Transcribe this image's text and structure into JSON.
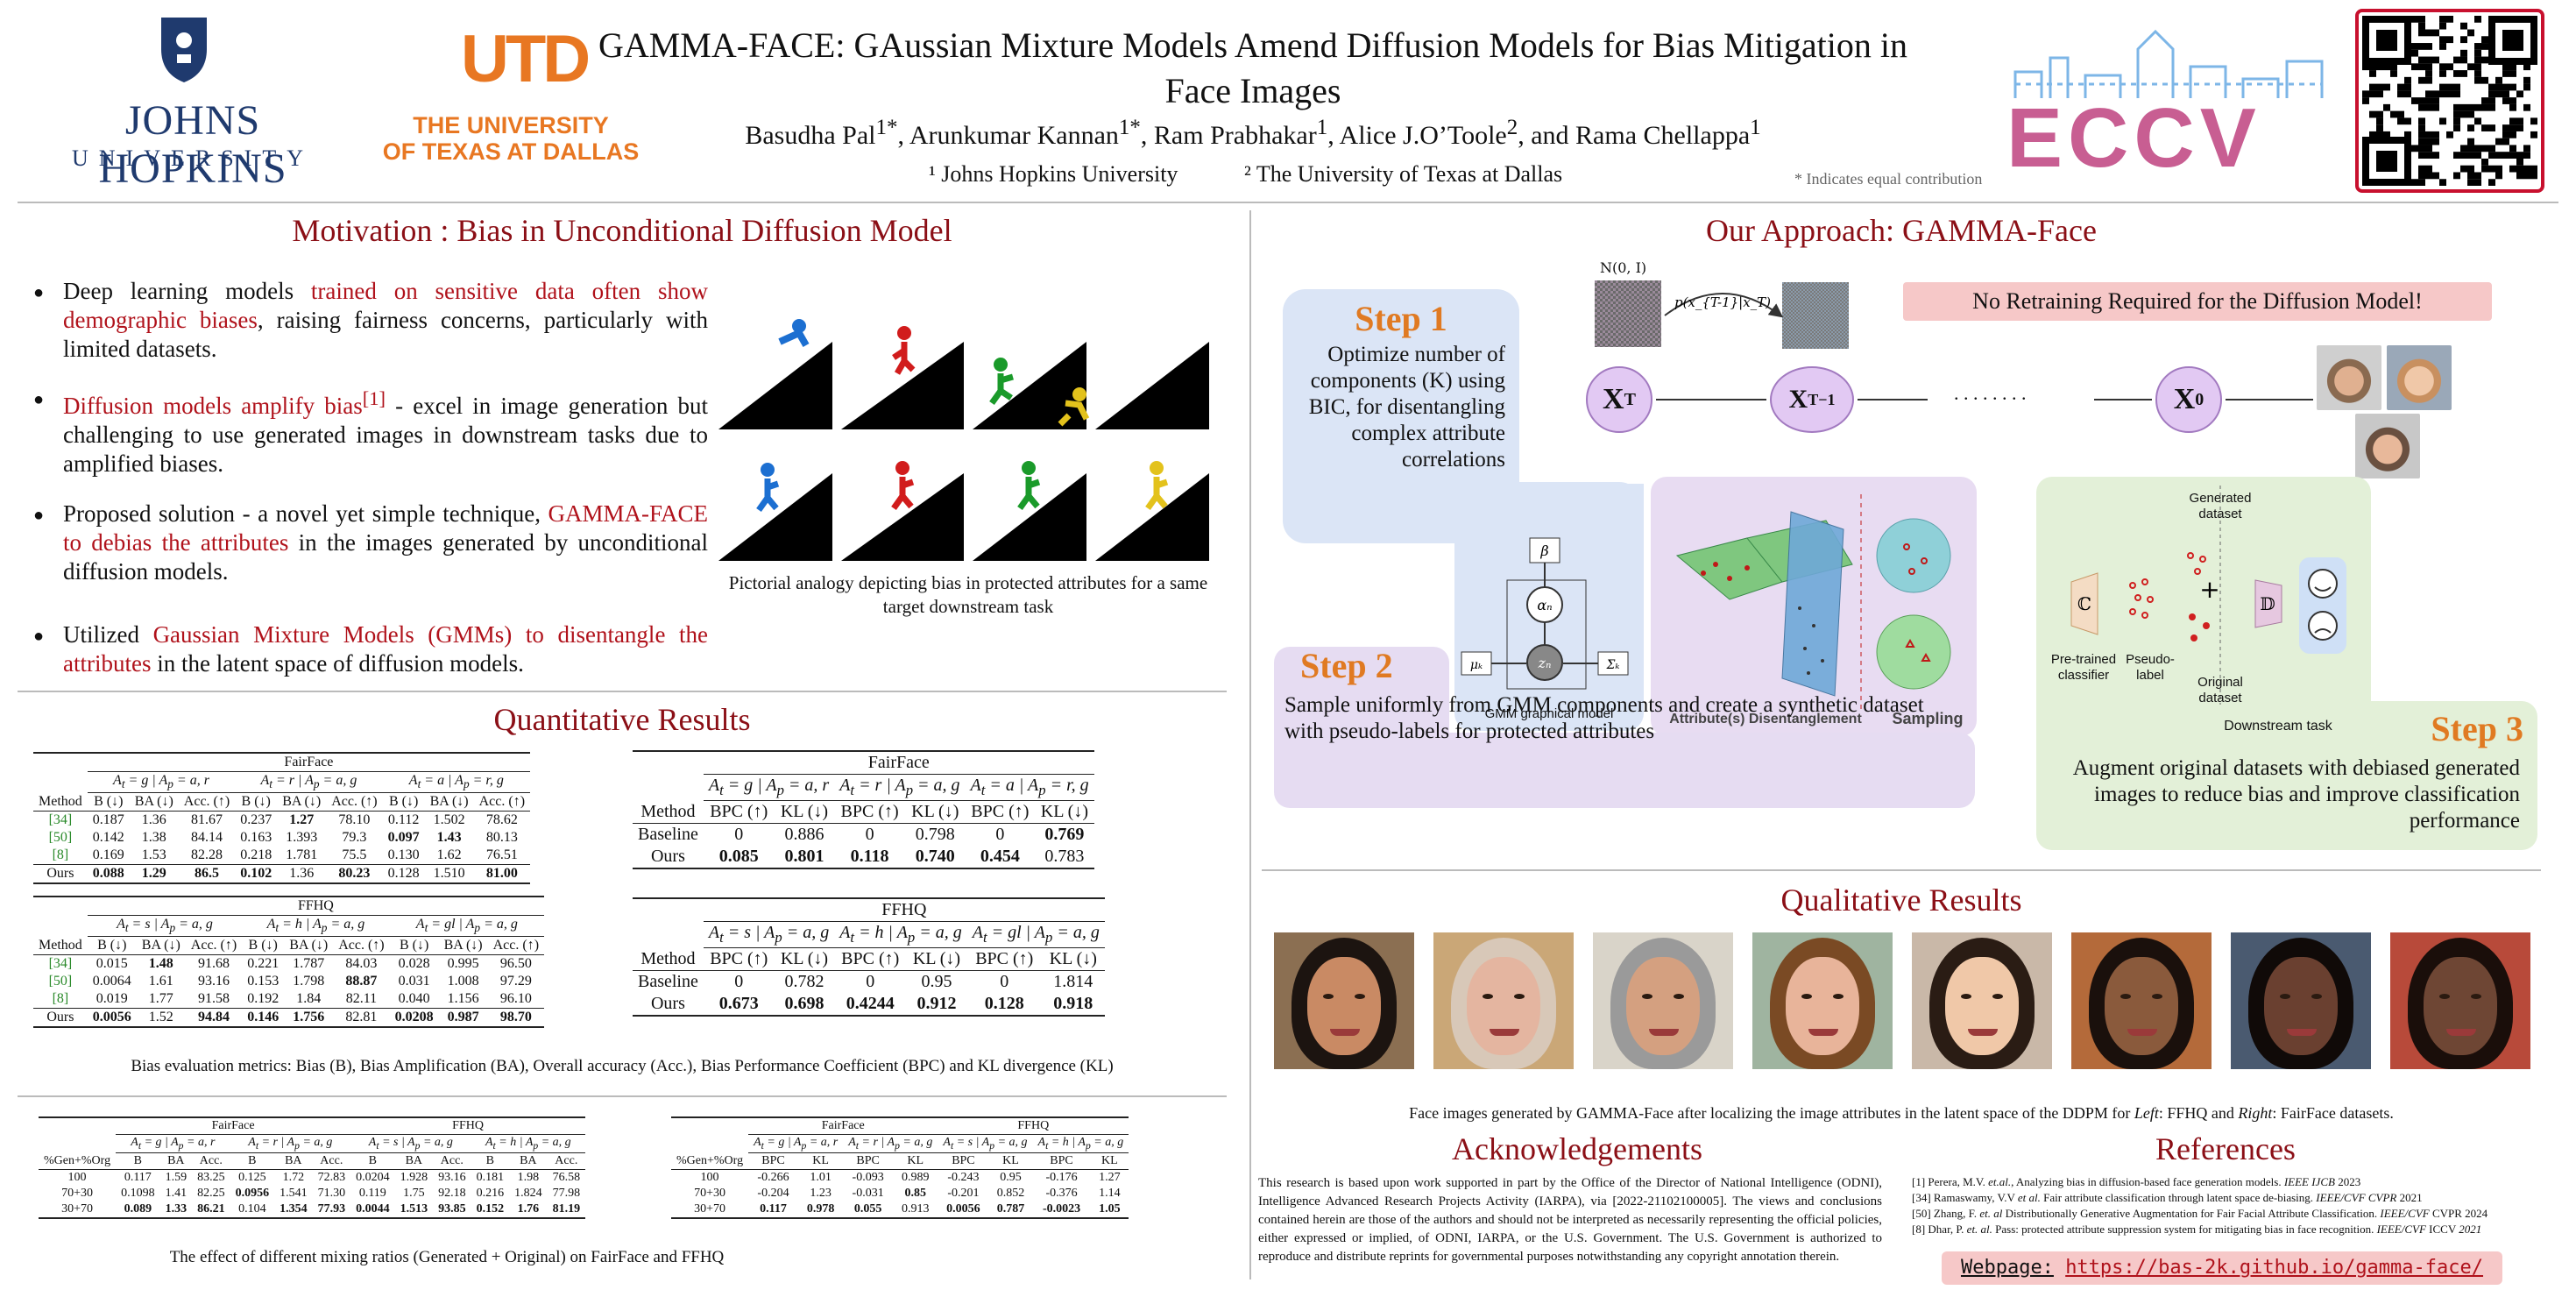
{
  "header": {
    "title": "GAMMA-FACE: GAussian Mixture Models Amend Diffusion Models for Bias Mitigation in Face Images",
    "authors_html": "Basudha Pal<sup>1*</sup>, Arunkumar Kannan<sup>1*</sup>, Ram Prabhakar<sup>1</sup>, Alice J.O’Toole<sup>2</sup>, and Rama Chellappa<sup>1</sup>",
    "affil1": "¹ Johns Hopkins University",
    "affil2": "² The University of Texas at Dallas",
    "equal": "* Indicates equal contribution",
    "jhu_line1": "JOHNS HOPKINS",
    "jhu_line2": "UNIVERSITY",
    "utd_line1": "THE UNIVERSITY",
    "utd_line2": "OF TEXAS AT DALLAS",
    "utd_mark": "UTD",
    "eccv": "ECCV",
    "colors": {
      "jhu": "#1f3a6e",
      "utd": "#e87722",
      "red": "#b0121b",
      "eccv1": "#c85e92",
      "eccv2": "#7db6e7"
    }
  },
  "motivation": {
    "title": "Motivation : Bias in Unconditional Diffusion Model",
    "b1": "Deep learning models <span class='red'>trained on sensitive data often show demographic biases</span>, raising fairness concerns, particularly with limited datasets.",
    "b2": "<span class='red'>Diffusion models amplify bias<sup>[1]</sup></span> - excel in image generation but challenging to use generated images in downstream tasks due to amplified biases.",
    "b3": "Proposed solution - a novel yet simple technique, <span class='red'>GAMMA-FACE to debias the attributes</span> in the images generated by unconditional diffusion models.",
    "b4": "Utilized <span class='red'>Gaussian Mixture Models (GMMs) to disentangle the attributes</span> in the latent space of diffusion models.",
    "caption": "Pictorial analogy depicting bias in protected attributes for a same target downstream task"
  },
  "quant": {
    "title": "Quantitative Results",
    "caption1": "Bias evaluation metrics: Bias (B), Bias Amplification (BA), Overall accuracy (Acc.), Bias Performance Coefficient (BPC) and KL divergence (KL)",
    "caption2": "The effect of different mixing ratios (Generated + Original) on FairFace and FFHQ"
  },
  "approach": {
    "title": "Our Approach: GAMMA-Face",
    "banner": "No Retraining Required for the Diffusion Model!",
    "step1": "Step 1",
    "step1_text": "Optimize number of components (K) using BIC, for disentangling complex attribute correlations",
    "step2": "Step 2",
    "step2_text": "Sample uniformly from GMM components and create a synthetic dataset with pseudo-labels for protected attributes",
    "step3": "Step 3",
    "step3_text": "Augment original datasets with debiased generated images to reduce bias and improve classification performance",
    "gmm_label": "GMM graphical model",
    "attr_label": "Attribute(s) Disentanglement",
    "sampling": "Sampling",
    "pretrained": "Pre-trained classifier",
    "pseudo": "Pseudo-label",
    "generated": "Generated dataset",
    "original": "Original dataset",
    "downstream": "Downstream task",
    "noise_label": "N(0, I)",
    "dots": ". . . . . . . ."
  },
  "qual": {
    "title": "Qualitative Results",
    "caption": "Face images generated by GAMMA-Face after localizing the image attributes in the latent space of the DDPM for <i>Left</i>: FFHQ and <i>Right</i>: FairFace datasets.",
    "faces": [
      {
        "skin": "#c98a64",
        "hair": "#1c1410",
        "bg": "#8b6f52"
      },
      {
        "skin": "#e4b5a0",
        "hair": "#d8c8b8",
        "bg": "#caa777"
      },
      {
        "skin": "#d4a080",
        "hair": "#9a9a9a",
        "bg": "#d9d4c9"
      },
      {
        "skin": "#e8b49a",
        "hair": "#7a4a24",
        "bg": "#9fb4a0"
      },
      {
        "skin": "#f0c8a8",
        "hair": "#2a1c14",
        "bg": "#c9b8a8"
      },
      {
        "skin": "#8a5a3c",
        "hair": "#1a100c",
        "bg": "#b46a3a"
      },
      {
        "skin": "#6a4030",
        "hair": "#100a08",
        "bg": "#4a5a70"
      },
      {
        "skin": "#6e4634",
        "hair": "#1a0e0a",
        "bg": "#b84a3a"
      }
    ]
  },
  "ack": {
    "title": "Acknowledgements",
    "text": "This research is based upon work supported in part by the Office of the Director of National Intelligence (ODNI), Intelligence Advanced Research Projects Activity (IARPA), via [2022-21102100005]. The views and conclusions contained herein are those of the authors and should not be interpreted as necessarily representing the official policies, either expressed or implied, of ODNI, IARPA, or the U.S. Government. The U.S. Government is authorized to reproduce and distribute reprints for governmental purposes notwithstanding any copyright annotation therein."
  },
  "refs": {
    "title": "References",
    "items": [
      "[1] Perera, M.V. <i>et.al.</i>, Analyzing bias in diffusion-based face generation models.  <i>IEEE IJCB</i> 2023",
      "[34] Ramaswamy, V.V <i>et al.</i> Fair attribute classification through latent space de-biasing.  <i>IEEE/CVF CVPR</i> 2021",
      "[50] Zhang, F. <i>et. al</i> Distributionally Generative Augmentation for Fair Facial Attribute Classification. <i>IEEE/CVF</i> CVPR 2024",
      "[8] Dhar, P. <i>et. al.</i> Pass: protected attribute suppression system for mitigating bias in face recognition. <i>IEEE/CVF</i> ICCV <i>2021</i>"
    ]
  },
  "webpage": {
    "label": "Webpage:",
    "url": "https://bas-2k.github.io/gamma-face/"
  },
  "table1": {
    "group": "FairFace",
    "subheads": [
      "A<sub>t</sub> = g | A<sub>p</sub> = a, r",
      "A<sub>t</sub> = r | A<sub>p</sub> = a, g",
      "A<sub>t</sub> = a | A<sub>p</sub> = r, g"
    ],
    "cols": [
      "Method",
      "B (↓)",
      "BA (↓)",
      "Acc. (↑)",
      "B (↓)",
      "BA (↓)",
      "Acc. (↑)",
      "B (↓)",
      "BA (↓)",
      "Acc. (↑)"
    ],
    "rows": [
      [
        "[34]",
        "0.187",
        "1.36",
        "81.67",
        "0.237",
        "<b>1.27</b>",
        "78.10",
        "0.112",
        "1.502",
        "78.62"
      ],
      [
        "[50]",
        "0.142",
        "1.38",
        "84.14",
        "0.163",
        "1.393",
        "79.3",
        "<b>0.097</b>",
        "<b>1.43</b>",
        "80.13"
      ],
      [
        "[8]",
        "0.169",
        "1.53",
        "82.28",
        "0.218",
        "1.781",
        "75.5",
        "0.130",
        "1.62",
        "76.51"
      ],
      [
        "Ours",
        "<b>0.088</b>",
        "<b>1.29</b>",
        "<b>86.5</b>",
        "<b>0.102</b>",
        "1.36",
        "<b>80.23</b>",
        "0.128",
        "1.510",
        "<b>81.00</b>"
      ]
    ]
  },
  "table2": {
    "group": "FFHQ",
    "subheads": [
      "A<sub>t</sub> = s | A<sub>p</sub> = a, g",
      "A<sub>t</sub> = h | A<sub>p</sub> = a, g",
      "A<sub>t</sub> = gl | A<sub>p</sub> = a, g"
    ],
    "cols": [
      "Method",
      "B (↓)",
      "BA (↓)",
      "Acc. (↑)",
      "B (↓)",
      "BA (↓)",
      "Acc. (↑)",
      "B (↓)",
      "BA (↓)",
      "Acc. (↑)"
    ],
    "rows": [
      [
        "[34]",
        "0.015",
        "<b>1.48</b>",
        "91.68",
        "0.221",
        "1.787",
        "84.03",
        "0.028",
        "0.995",
        "96.50"
      ],
      [
        "[50]",
        "0.0064",
        "1.61",
        "93.16",
        "0.153",
        "1.798",
        "<b>88.87</b>",
        "0.031",
        "1.008",
        "97.29"
      ],
      [
        "[8]",
        "0.019",
        "1.77",
        "91.58",
        "0.192",
        "1.84",
        "82.11",
        "0.040",
        "1.156",
        "96.10"
      ],
      [
        "Ours",
        "<b>0.0056</b>",
        "1.52",
        "<b>94.84</b>",
        "<b>0.146</b>",
        "<b>1.756</b>",
        "82.81",
        "<b>0.0208</b>",
        "<b>0.987</b>",
        "<b>98.70</b>"
      ]
    ]
  },
  "table3": {
    "group": "FairFace",
    "subheads": [
      "A<sub>t</sub> = g | A<sub>p</sub> = a, r",
      "A<sub>t</sub> = r | A<sub>p</sub> = a, g",
      "A<sub>t</sub> = a | A<sub>p</sub> = r, g"
    ],
    "cols": [
      "Method",
      "BPC (↑)",
      "KL (↓)",
      "BPC (↑)",
      "KL (↓)",
      "BPC (↑)",
      "KL (↓)"
    ],
    "rows": [
      [
        "Baseline",
        "0",
        "0.886",
        "0",
        "0.798",
        "0",
        "<b>0.769</b>"
      ],
      [
        "Ours",
        "<b>0.085</b>",
        "<b>0.801</b>",
        "<b>0.118</b>",
        "<b>0.740</b>",
        "<b>0.454</b>",
        "0.783"
      ]
    ]
  },
  "table4": {
    "group": "FFHQ",
    "subheads": [
      "A<sub>t</sub> = s | A<sub>p</sub> = a, g",
      "A<sub>t</sub> = h | A<sub>p</sub> = a, g",
      "A<sub>t</sub> = gl | A<sub>p</sub> = a, g"
    ],
    "cols": [
      "Method",
      "BPC (↑)",
      "KL (↓)",
      "BPC (↑)",
      "KL (↓)",
      "BPC (↑)",
      "KL (↓)"
    ],
    "rows": [
      [
        "Baseline",
        "0",
        "0.782",
        "0",
        "0.95",
        "0",
        "1.814"
      ],
      [
        "Ours",
        "<b>0.673</b>",
        "<b>0.698</b>",
        "<b>0.4244</b>",
        "<b>0.912</b>",
        "<b>0.128</b>",
        "<b>0.918</b>"
      ]
    ]
  },
  "table5": {
    "groups": [
      "FairFace",
      "FFHQ"
    ],
    "subheads": [
      "A<sub>t</sub> = g | A<sub>p</sub> = a, r",
      "A<sub>t</sub> = r | A<sub>p</sub> = a, g",
      "A<sub>t</sub> = s | A<sub>p</sub> = a, g",
      "A<sub>t</sub> = h | A<sub>p</sub> = a, g"
    ],
    "cols": [
      "%Gen+%Org",
      "B",
      "BA",
      "Acc.",
      "B",
      "BA",
      "Acc.",
      "B",
      "BA",
      "Acc.",
      "B",
      "BA",
      "Acc."
    ],
    "rows": [
      [
        "100",
        "0.117",
        "1.59",
        "83.25",
        "0.125",
        "1.72",
        "72.83",
        "0.0204",
        "1.928",
        "93.16",
        "0.181",
        "1.98",
        "76.58"
      ],
      [
        "70+30",
        "0.1098",
        "1.41",
        "82.25",
        "<b>0.0956</b>",
        "1.541",
        "71.30",
        "0.119",
        "1.75",
        "92.18",
        "0.216",
        "1.824",
        "77.98"
      ],
      [
        "30+70",
        "<b>0.089</b>",
        "<b>1.33</b>",
        "<b>86.21</b>",
        "0.104",
        "<b>1.354</b>",
        "<b>77.93</b>",
        "<b>0.0044</b>",
        "<b>1.513</b>",
        "<b>93.85</b>",
        "<b>0.152</b>",
        "<b>1.76</b>",
        "<b>81.19</b>"
      ]
    ]
  },
  "table6": {
    "groups": [
      "FairFace",
      "FFHQ"
    ],
    "subheads": [
      "A<sub>t</sub> = g | A<sub>p</sub> = a, r",
      "A<sub>t</sub> = r | A<sub>p</sub> = a, g",
      "A<sub>t</sub> = s | A<sub>p</sub> = a, g",
      "A<sub>t</sub> = h | A<sub>p</sub> = a, g"
    ],
    "cols": [
      "%Gen+%Org",
      "BPC",
      "KL",
      "BPC",
      "KL",
      "BPC",
      "KL",
      "BPC",
      "KL"
    ],
    "rows": [
      [
        "100",
        "-0.266",
        "1.01",
        "-0.093",
        "0.989",
        "-0.243",
        "0.95",
        "-0.176",
        "1.27"
      ],
      [
        "70+30",
        "-0.204",
        "1.23",
        "-0.031",
        "<b>0.85</b>",
        "-0.201",
        "0.852",
        "-0.376",
        "1.14"
      ],
      [
        "30+70",
        "<b>0.117</b>",
        "<b>0.978</b>",
        "<b>0.055</b>",
        "0.913",
        "<b>0.0056</b>",
        "<b>0.787</b>",
        "<b>-0.0023</b>",
        "<b>1.05</b>"
      ]
    ]
  }
}
